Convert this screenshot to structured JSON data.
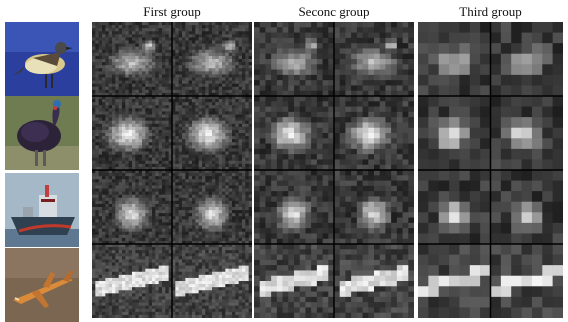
{
  "headers": {
    "first": "First group",
    "second": "Seconc group",
    "third": "Third group"
  },
  "rows": [
    {
      "subject": "bird",
      "bg": "#2b3f9c"
    },
    {
      "subject": "turkey",
      "bg": "#6f7a4f"
    },
    {
      "subject": "ship",
      "bg": "#8aa3b6"
    },
    {
      "subject": "airplane",
      "bg": "#7c6650"
    }
  ],
  "colors": {
    "page_bg": "#ffffff",
    "map_bg": "#1a1a1a"
  }
}
